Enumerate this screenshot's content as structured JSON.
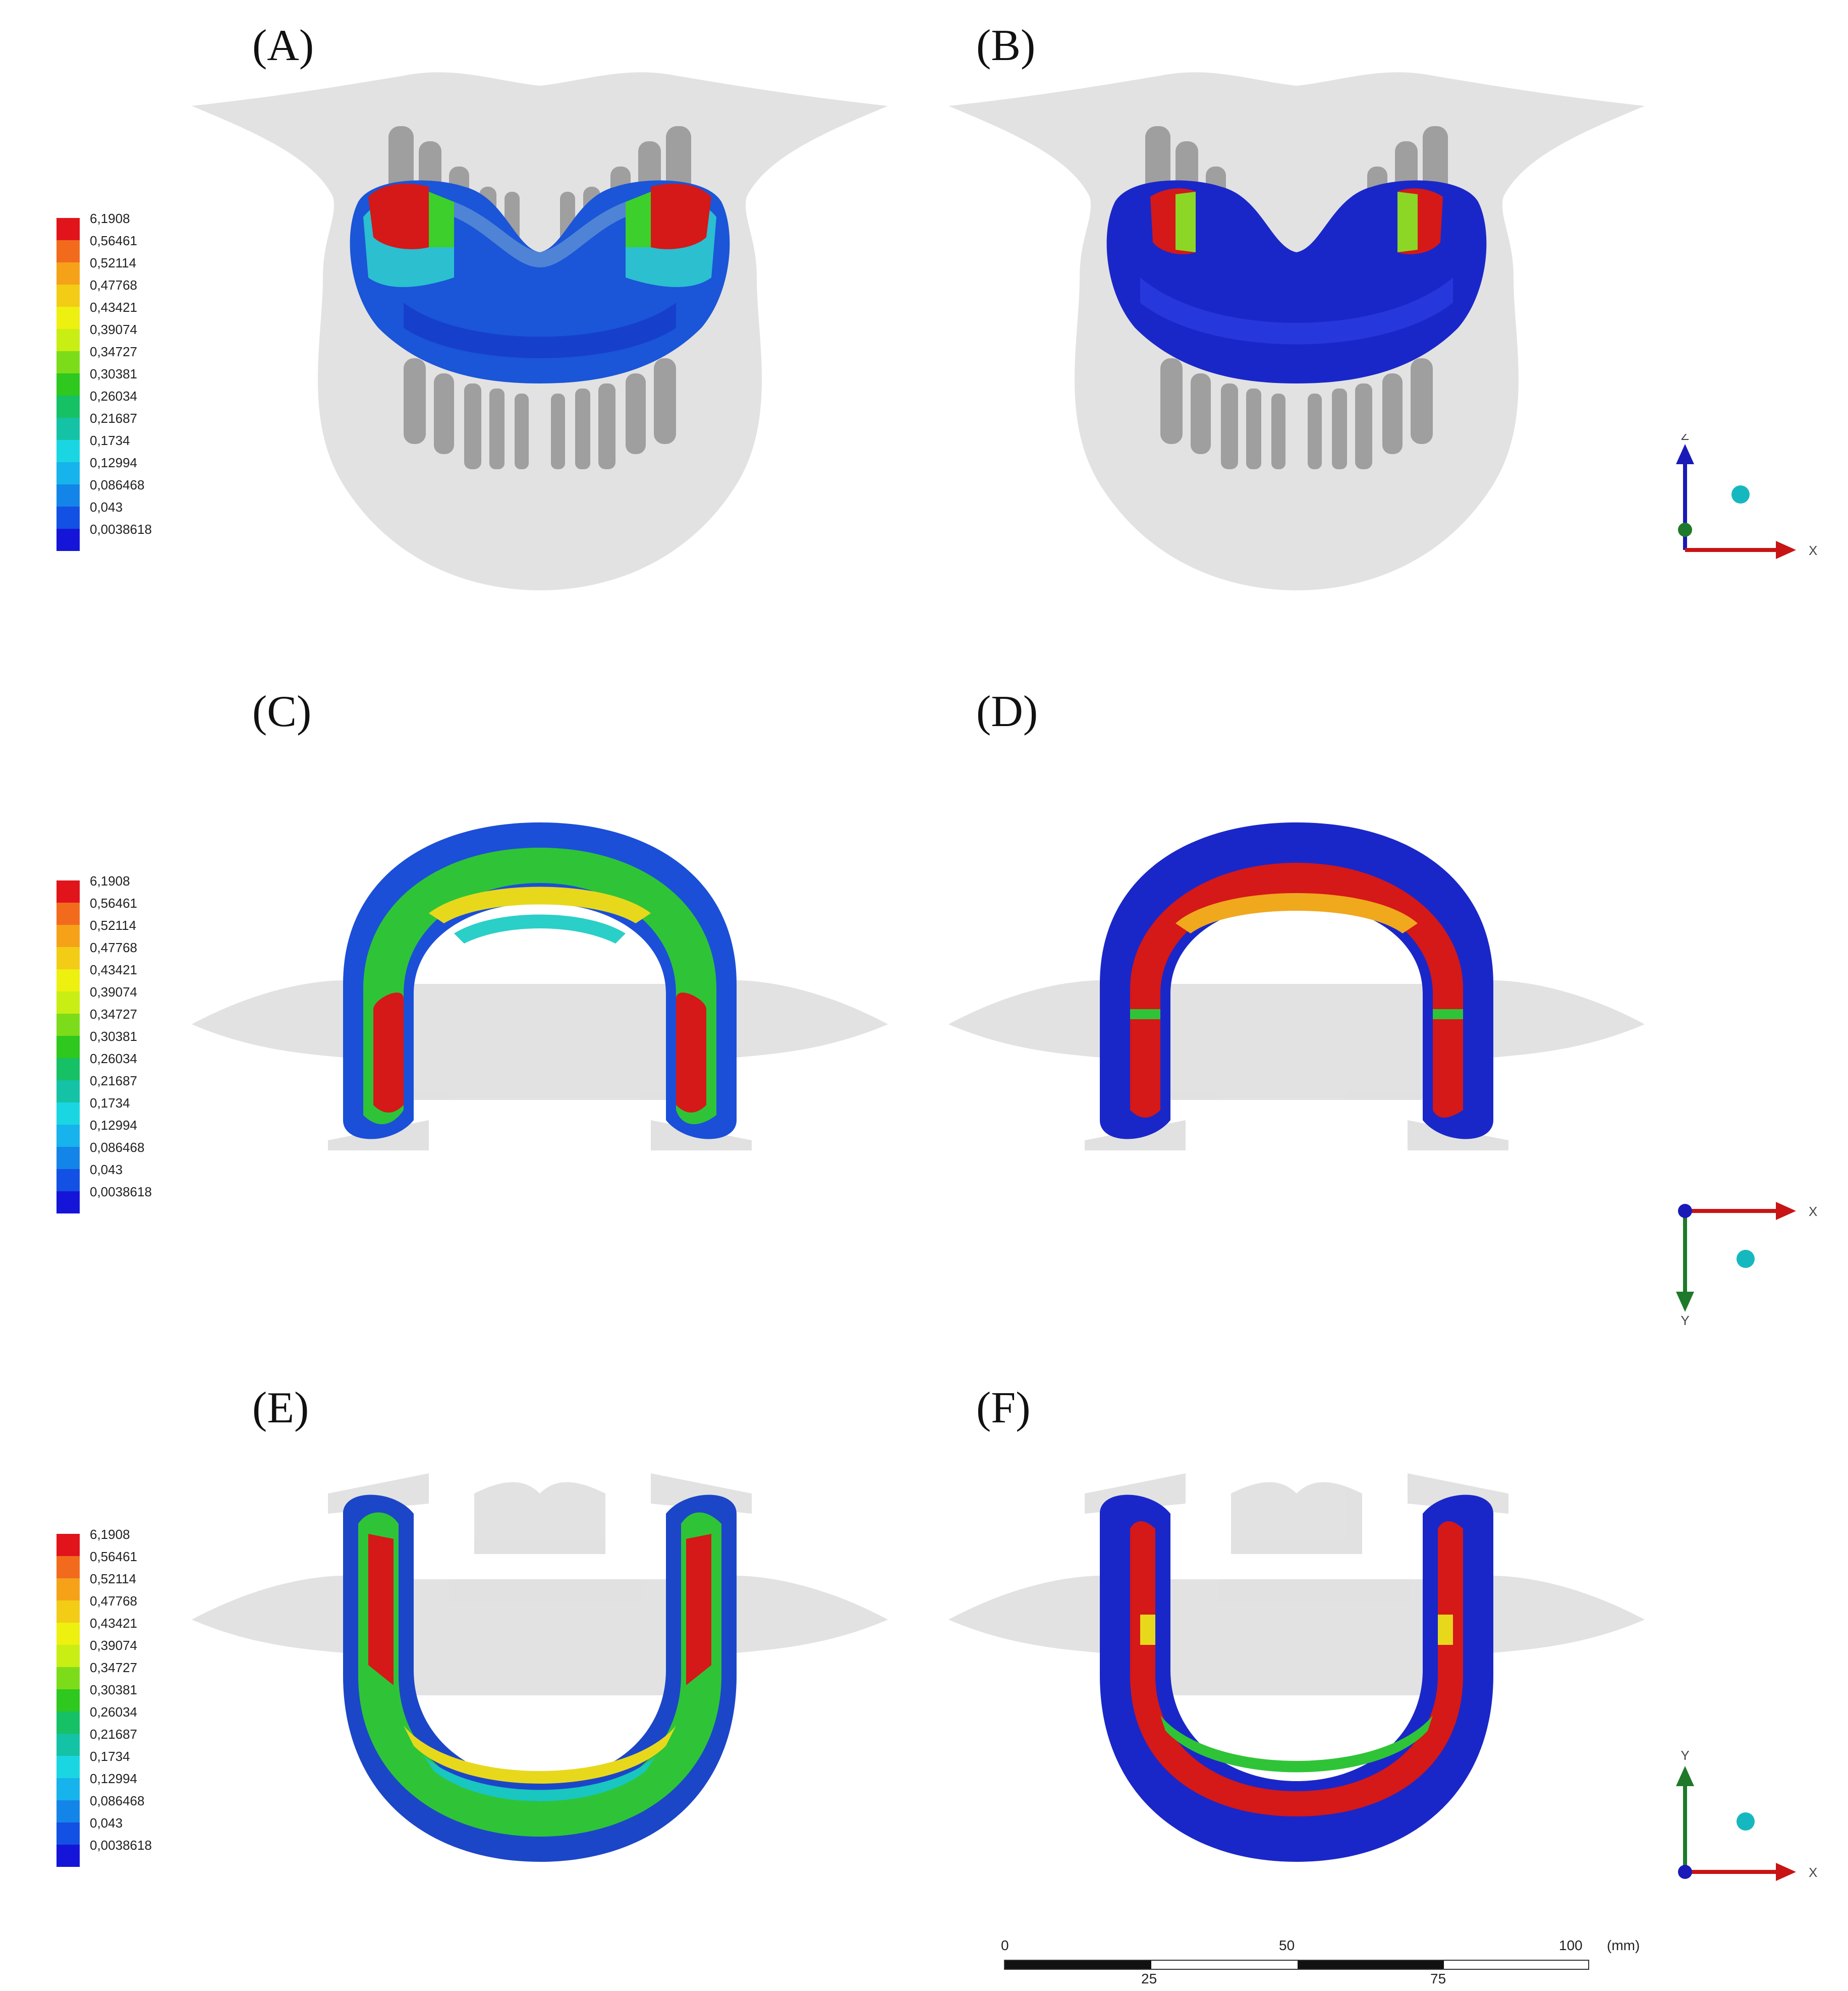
{
  "panels": {
    "A": "(A)",
    "B": "(B)",
    "C": "(C)",
    "D": "(D)",
    "E": "(E)",
    "F": "(F)"
  },
  "legend": {
    "values": [
      "6,1908",
      "0,56461",
      "0,52114",
      "0,47768",
      "0,43421",
      "0,39074",
      "0,34727",
      "0,30381",
      "0,26034",
      "0,21687",
      "0,1734",
      "0,12994",
      "0,086468",
      "0,043",
      "0,0038618"
    ],
    "colors": [
      "#e0141a",
      "#f26b1d",
      "#f5a219",
      "#f3cc16",
      "#eef00f",
      "#c9ee13",
      "#7ddc1a",
      "#2ec81e",
      "#16c065",
      "#14c2a6",
      "#1ad6e2",
      "#17b3ec",
      "#1485e8",
      "#1350e4",
      "#1415d8"
    ]
  },
  "axes": {
    "top": {
      "vertical": "Z",
      "horizontal": "X"
    },
    "middle": {
      "vertical": "Y",
      "horizontal": "X"
    },
    "bottom": {
      "vertical": "Y",
      "horizontal": "X"
    }
  },
  "scale_bar": {
    "top_labels": [
      "0",
      "50",
      "100"
    ],
    "unit": "(mm)",
    "bottom_labels": [
      "25",
      "75"
    ]
  },
  "colors": {
    "skull": "#d9d9d9",
    "teeth": "#9a9a9a",
    "guard_blue": "#1a2ed8",
    "stress_high": "#c81010",
    "stress_mid": "#2fc437",
    "stress_low_mid": "#19c6c0"
  }
}
